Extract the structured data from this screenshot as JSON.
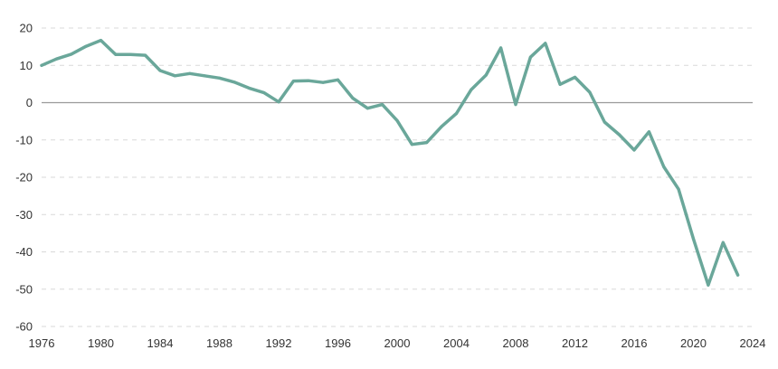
{
  "chart_data": {
    "type": "line",
    "title": "",
    "xlabel": "",
    "ylabel": "",
    "xlim": [
      1976,
      2024
    ],
    "ylim": [
      -60,
      20
    ],
    "x_ticks": [
      1976,
      1980,
      1984,
      1988,
      1992,
      1996,
      2000,
      2004,
      2008,
      2012,
      2016,
      2020,
      2024
    ],
    "x_tick_labels": [
      "1976",
      "1980",
      "1984",
      "1988",
      "1992",
      "1996",
      "2000",
      "2004",
      "2008",
      "2012",
      "2016",
      "2020",
      "2024"
    ],
    "y_ticks": [
      20,
      10,
      0,
      -10,
      -20,
      -30,
      -40,
      -50,
      -60
    ],
    "y_tick_labels": [
      "20",
      "10",
      "0",
      "-10",
      "-20",
      "-30",
      "-40",
      "-50",
      "-60"
    ],
    "grid": "horizontal dashed",
    "series": [
      {
        "color": "#6aa79a",
        "x": [
          1976,
          1977,
          1978,
          1979,
          1980,
          1981,
          1982,
          1983,
          1984,
          1985,
          1986,
          1987,
          1988,
          1989,
          1990,
          1991,
          1992,
          1993,
          1994,
          1995,
          1996,
          1997,
          1998,
          1999,
          2000,
          2001,
          2002,
          2003,
          2004,
          2005,
          2006,
          2007,
          2008,
          2009,
          2010,
          2011,
          2012,
          2013,
          2014,
          2015,
          2016,
          2017,
          2018,
          2019,
          2020,
          2021,
          2022,
          2023
        ],
        "values": [
          10,
          11.7,
          13,
          15.1,
          16.7,
          12.9,
          12.9,
          12.7,
          8.6,
          7.2,
          7.8,
          7.2,
          6.6,
          5.5,
          3.9,
          2.7,
          0.2,
          5.8,
          5.9,
          5.4,
          6.1,
          1.2,
          -1.5,
          -0.5,
          -4.8,
          -11.2,
          -10.7,
          -6.4,
          -2.9,
          3.5,
          7.4,
          14.7,
          -0.5,
          12.2,
          15.9,
          4.9,
          6.8,
          2.8,
          -5.2,
          -8.6,
          -12.7,
          -7.8,
          -17.2,
          -23.2,
          -36.5,
          -48.9,
          -37.5,
          -46.2
        ]
      }
    ]
  }
}
